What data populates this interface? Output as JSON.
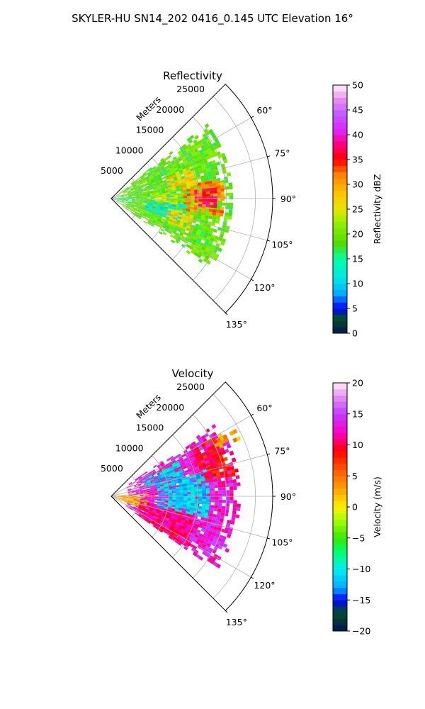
{
  "figure": {
    "suptitle": "SKYLER-HU  SN14_202  0416_0.145 UTC Elevation 16°"
  },
  "chart_data": [
    {
      "type": "heatmap",
      "subtype": "polar-sector-radar-ppi",
      "title": "Reflectivity",
      "radial_axis_label": "Meters",
      "radial_ticks": [
        "5000",
        "10000",
        "15000",
        "20000",
        "25000"
      ],
      "radial_range": [
        0,
        28000
      ],
      "angle_ticks": [
        "60°",
        "75°",
        "90°",
        "105°",
        "120°",
        "135°"
      ],
      "angle_range_deg": [
        45,
        135
      ],
      "colorbar": {
        "label": "Reflectivity dBZ",
        "range": [
          0,
          50
        ],
        "ticks": [
          "0",
          "5",
          "10",
          "15",
          "20",
          "25",
          "30",
          "35",
          "40",
          "45",
          "50"
        ]
      },
      "echo_regions": [
        {
          "name": "main-echo",
          "az": [
            52,
            124
          ],
          "r": [
            1000,
            21000
          ],
          "level_dbz": 19
        },
        {
          "name": "near-band",
          "az": [
            84,
            98
          ],
          "r": [
            0,
            3500
          ],
          "level_dbz": 14
        },
        {
          "name": "core-south",
          "az": [
            94,
            108
          ],
          "r": [
            6000,
            13000
          ],
          "level_dbz": 12
        },
        {
          "name": "cell-east",
          "az": [
            80,
            98
          ],
          "r": [
            12500,
            19500
          ],
          "level_dbz": 31
        },
        {
          "name": "cell-east-core",
          "az": [
            84,
            94
          ],
          "r": [
            14500,
            18000
          ],
          "level_dbz": 37
        },
        {
          "name": "cell-north",
          "az": [
            68,
            82
          ],
          "r": [
            10000,
            15000
          ],
          "level_dbz": 27
        },
        {
          "name": "cell-south",
          "az": [
            100,
            112
          ],
          "r": [
            10000,
            15000
          ],
          "level_dbz": 27
        },
        {
          "name": "cell-mid",
          "az": [
            84,
            94
          ],
          "r": [
            7000,
            11000
          ],
          "level_dbz": 24
        }
      ]
    },
    {
      "type": "heatmap",
      "subtype": "polar-sector-radar-ppi",
      "title": "Velocity",
      "radial_axis_label": "Meters",
      "radial_ticks": [
        "5000",
        "10000",
        "15000",
        "20000",
        "25000"
      ],
      "radial_range": [
        0,
        28000
      ],
      "angle_ticks": [
        "60°",
        "75°",
        "90°",
        "105°",
        "120°",
        "135°"
      ],
      "angle_range_deg": [
        45,
        135
      ],
      "colorbar": {
        "label": "Velocity (m/s)",
        "range": [
          -20,
          20
        ],
        "ticks": [
          "−20",
          "−15",
          "−10",
          "−5",
          "0",
          "5",
          "10",
          "15",
          "20"
        ]
      },
      "echo_regions": [
        {
          "name": "main-echo",
          "az": [
            55,
            124
          ],
          "r": [
            3000,
            22000
          ],
          "level_ms": 13
        },
        {
          "name": "near-band",
          "az": [
            84,
            112
          ],
          "r": [
            0,
            6000
          ],
          "level_ms": 3
        },
        {
          "name": "south-inbound",
          "az": [
            100,
            124
          ],
          "r": [
            5000,
            16000
          ],
          "level_ms": 11
        },
        {
          "name": "center-outbound",
          "az": [
            74,
            102
          ],
          "r": [
            8000,
            17000
          ],
          "level_ms": -11
        },
        {
          "name": "north-outbound",
          "az": [
            62,
            74
          ],
          "r": [
            6000,
            13000
          ],
          "level_ms": -11
        },
        {
          "name": "east-edge",
          "az": [
            60,
            80
          ],
          "r": [
            16000,
            22000
          ],
          "level_ms": 9
        },
        {
          "name": "edge-yellow",
          "az": [
            60,
            66
          ],
          "r": [
            20000,
            24000
          ],
          "level_ms": 3
        }
      ]
    }
  ]
}
